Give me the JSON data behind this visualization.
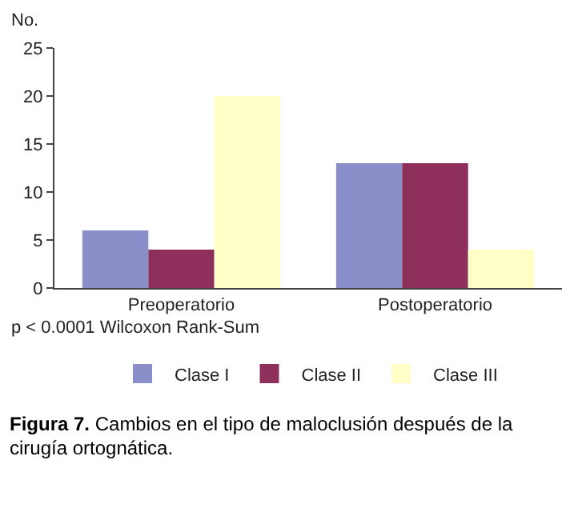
{
  "chart_data": {
    "type": "bar",
    "categories": [
      "Preoperatorio",
      "Postoperatorio"
    ],
    "series": [
      {
        "name": "Clase I",
        "color": "#8b8fc9",
        "values": [
          6,
          13
        ]
      },
      {
        "name": "Clase II",
        "color": "#8e2f5c",
        "values": [
          4,
          13
        ]
      },
      {
        "name": "Clase III",
        "color": "#ffffc8",
        "values": [
          20,
          4
        ]
      }
    ],
    "ylabel": "No.",
    "ylim": [
      0,
      25
    ],
    "yticks": [
      0,
      5,
      10,
      15,
      20,
      25
    ],
    "grid": false,
    "legend": "bottom",
    "annotations": [
      "p < 0.0001 Wilcoxon Rank-Sum",
      "Figura 7. Cambios en el tipo de maloclusión después de la cirugía ortognática."
    ]
  }
}
